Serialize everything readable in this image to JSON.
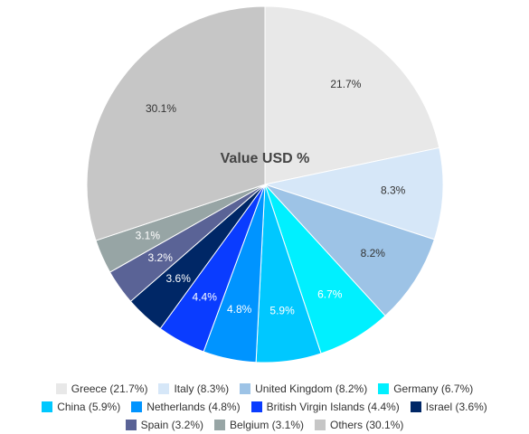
{
  "chart_data": {
    "type": "pie",
    "title": "Value USD %",
    "slices": [
      {
        "name": "Greece",
        "value": 21.7,
        "label": "21.7%",
        "legend": "Greece (21.7%)",
        "color": "#E8E8E8",
        "label_color": "#333333"
      },
      {
        "name": "Italy",
        "value": 8.3,
        "label": "8.3%",
        "legend": "Italy (8.3%)",
        "color": "#D6E7F8",
        "label_color": "#333333"
      },
      {
        "name": "United Kingdom",
        "value": 8.2,
        "label": "8.2%",
        "legend": "United Kingdom (8.2%)",
        "color": "#9DC3E6",
        "label_color": "#333333"
      },
      {
        "name": "Germany",
        "value": 6.7,
        "label": "6.7%",
        "legend": "Germany (6.7%)",
        "color": "#00F0FF",
        "label_color": "#FFFFFF"
      },
      {
        "name": "China",
        "value": 5.9,
        "label": "5.9%",
        "legend": "China (5.9%)",
        "color": "#00C8FF",
        "label_color": "#FFFFFF"
      },
      {
        "name": "Netherlands",
        "value": 4.8,
        "label": "4.8%",
        "legend": "Netherlands (4.8%)",
        "color": "#0094FF",
        "label_color": "#FFFFFF"
      },
      {
        "name": "British Virgin Islands",
        "value": 4.4,
        "label": "4.4%",
        "legend": "British Virgin Islands (4.4%)",
        "color": "#0A3CFF",
        "label_color": "#FFFFFF"
      },
      {
        "name": "Israel",
        "value": 3.6,
        "label": "3.6%",
        "legend": "Israel (3.6%)",
        "color": "#002766",
        "label_color": "#FFFFFF"
      },
      {
        "name": "Spain",
        "value": 3.2,
        "label": "3.2%",
        "legend": "Spain (3.2%)",
        "color": "#5A6396",
        "label_color": "#FFFFFF"
      },
      {
        "name": "Belgium",
        "value": 3.1,
        "label": "3.1%",
        "legend": "Belgium (3.1%)",
        "color": "#97A5A5",
        "label_color": "#FFFFFF"
      },
      {
        "name": "Others",
        "value": 30.1,
        "label": "30.1%",
        "legend": "Others (30.1%)",
        "color": "#C6C6C6",
        "label_color": "#333333"
      }
    ],
    "legend_position": "bottom"
  }
}
